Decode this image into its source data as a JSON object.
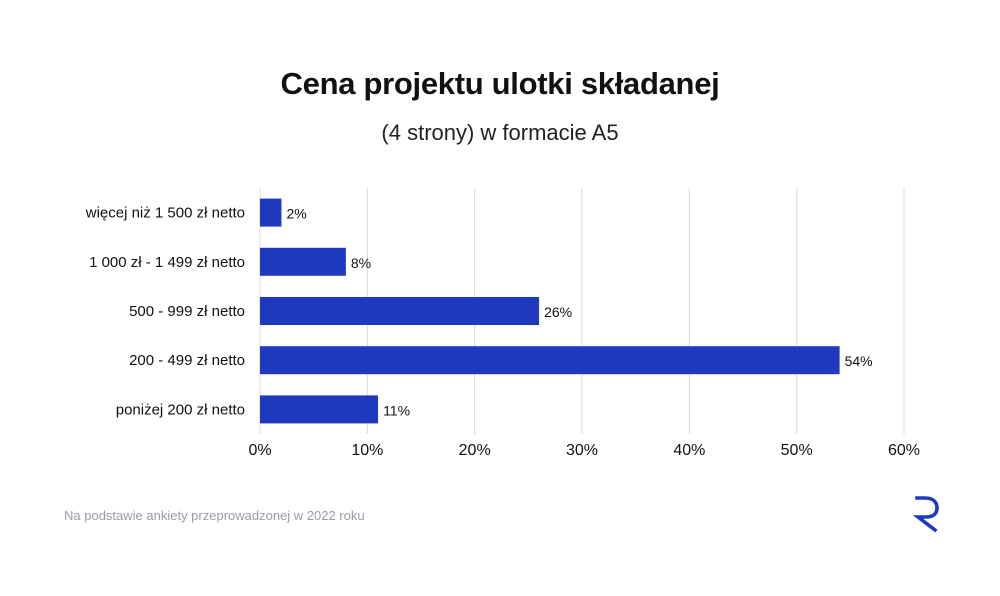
{
  "title": "Cena projektu ulotki składanej",
  "subtitle": "(4 strony) w formacie A5",
  "footnote": "Na podstawie ankiety przeprowadzonej w 2022 roku",
  "colors": {
    "bar": "#1f3abf",
    "grid": "#d9d9d9",
    "logo": "#1f3abf"
  },
  "chart_data": {
    "type": "bar",
    "orientation": "horizontal",
    "categories": [
      "więcej niż 1 500 zł netto",
      "1 000 zł - 1 499 zł netto",
      "500 - 999 zł netto",
      "200 - 499 zł netto",
      "poniżej 200 zł netto"
    ],
    "values": [
      2,
      8,
      26,
      54,
      11
    ],
    "value_labels": [
      "2%",
      "8%",
      "26%",
      "54%",
      "11%"
    ],
    "xticks": [
      0,
      10,
      20,
      30,
      40,
      50,
      60
    ],
    "xtick_labels": [
      "0%",
      "10%",
      "20%",
      "30%",
      "40%",
      "50%",
      "60%"
    ],
    "xlim": [
      0,
      60
    ],
    "grid": "vertical",
    "legend": "none"
  }
}
